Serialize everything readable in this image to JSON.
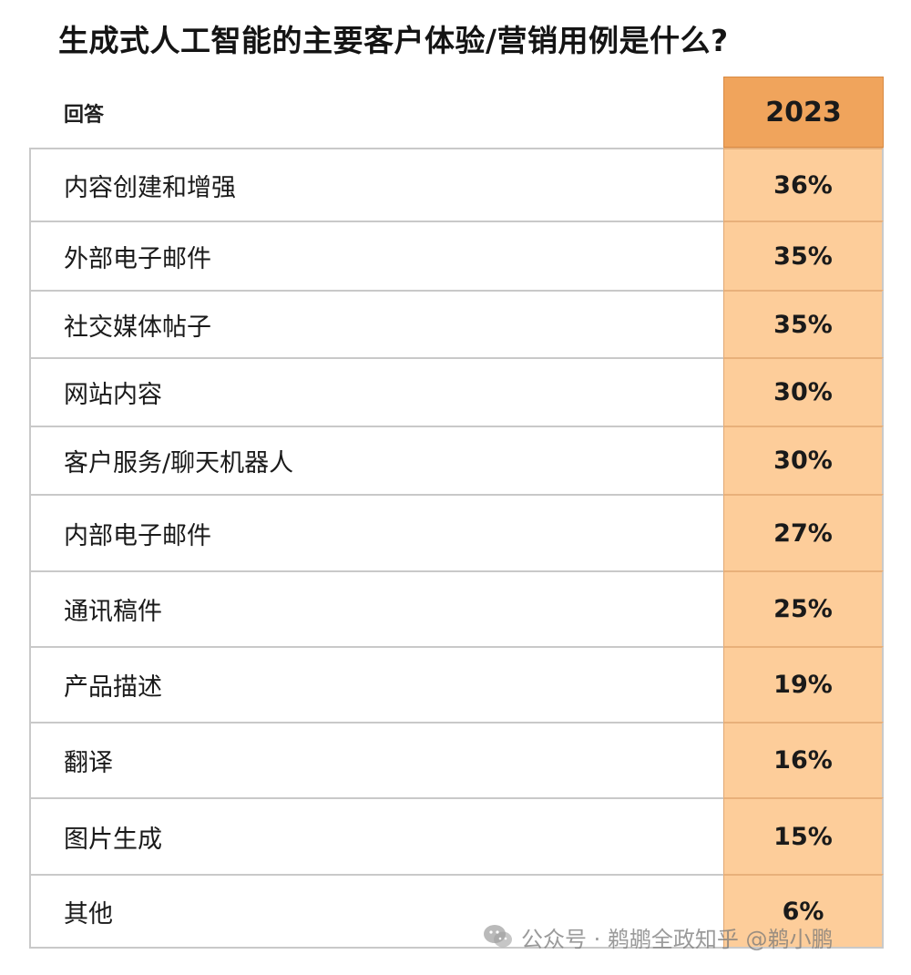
{
  "title": "生成式人工智能的主要客户体验/营销用例是什么?",
  "header": {
    "label": "回答",
    "year": "2023"
  },
  "colors": {
    "header_fill": "#f0a45c",
    "value_fill": "#fdcd9a",
    "border": "#c9c9c9"
  },
  "chart_data": {
    "type": "table",
    "title": "生成式人工智能的主要客户体验/营销用例是什么?",
    "columns": [
      "回答",
      "2023"
    ],
    "rows": [
      {
        "label": "内容创建和增强",
        "value": "36%"
      },
      {
        "label": "外部电子邮件",
        "value": "35%"
      },
      {
        "label": "社交媒体帖子",
        "value": "35%"
      },
      {
        "label": "网站内容",
        "value": "30%"
      },
      {
        "label": "客户服务/聊天机器人",
        "value": "30%"
      },
      {
        "label": "内部电子邮件",
        "value": "27%"
      },
      {
        "label": "通讯稿件",
        "value": "25%"
      },
      {
        "label": "产品描述",
        "value": "19%"
      },
      {
        "label": "翻译",
        "value": "16%"
      },
      {
        "label": "图片生成",
        "value": "15%"
      },
      {
        "label": "其他",
        "value": "6%"
      }
    ]
  },
  "watermark": {
    "text": "公众号 · 鹈鹕全政知乎 @鹈小鹏",
    "icon": "wechat-icon"
  }
}
